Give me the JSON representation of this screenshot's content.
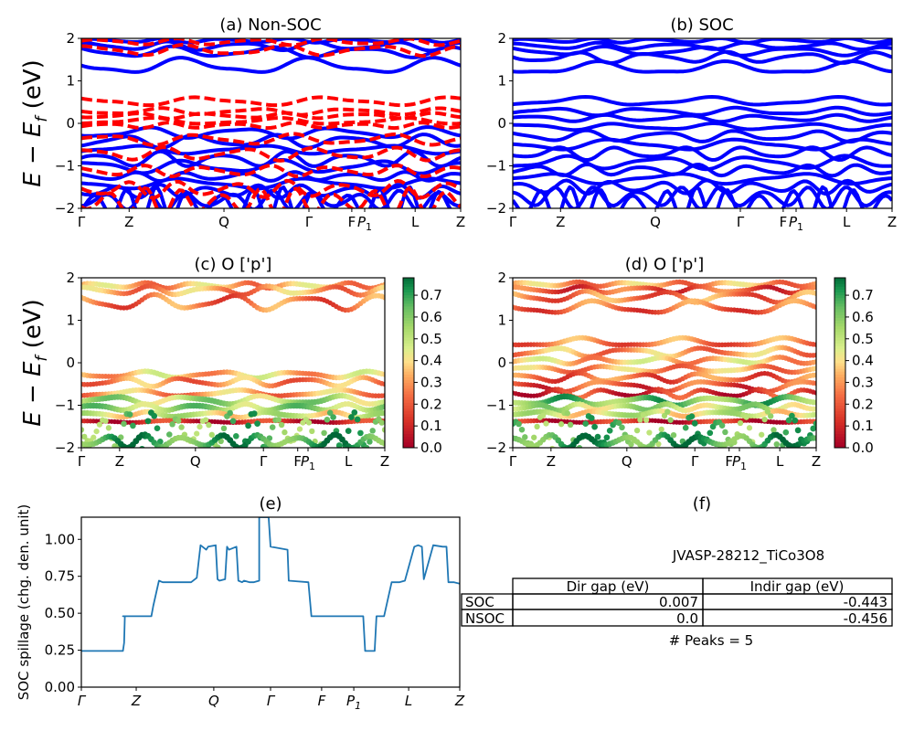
{
  "figure": {
    "panels": {
      "a": {
        "title": "(a) Non-SOC",
        "ylabel_main": "E − E",
        "ylabel_sub": "f",
        "ylabel_end": " (eV)"
      },
      "b": {
        "title": "(b) SOC"
      },
      "c": {
        "title": "(c)  O ['p']",
        "ylabel_main": "E − E",
        "ylabel_sub": "f",
        "ylabel_end": " (eV)"
      },
      "d": {
        "title": "(d) O ['p']"
      },
      "e": {
        "title": "(e)",
        "ylabel": "SOC spillage (chg. den. unit)"
      },
      "f": {
        "title": "(f)"
      }
    },
    "kpath_labels": [
      "Γ",
      "Z",
      "Q",
      "Γ",
      "F",
      "P",
      "L",
      "Z"
    ],
    "kpath_p_sub": "1",
    "band_yticks": [
      "−2",
      "−1",
      "0",
      "1",
      "2"
    ],
    "colorbar_ticks": [
      "0.0",
      "0.1",
      "0.2",
      "0.3",
      "0.4",
      "0.5",
      "0.6",
      "0.7"
    ],
    "spillage_yticks": [
      "0.00",
      "0.25",
      "0.50",
      "0.75",
      "1.00"
    ],
    "table": {
      "material": "JVASP-28212_TiCo3O8",
      "col_labels": [
        "Dir gap (eV)",
        "Indir gap (eV)"
      ],
      "rows": [
        {
          "label": "SOC",
          "dir": "0.007",
          "indir": "-0.443"
        },
        {
          "label": "NSOC",
          "dir": "0.0",
          "indir": "-0.456"
        }
      ],
      "peaks": "# Peaks = 5"
    },
    "colors": {
      "soc": "#0000ff",
      "nsoc": "#ff0000",
      "spillage": "#1f77b4"
    }
  },
  "chart_data": [
    {
      "type": "line",
      "title": "(a) Non-SOC",
      "ylabel": "E − E_f (eV)",
      "ylim": [
        -2,
        2
      ],
      "x_ticks": [
        0,
        0.126,
        0.376,
        0.6,
        0.713,
        0.747,
        0.88,
        1
      ],
      "x_tick_labels": [
        "Γ",
        "Z",
        "Q",
        "Γ",
        "F",
        "P1",
        "L",
        "Z"
      ],
      "series": [
        {
          "style": "solid",
          "color": "#0000ff",
          "bands": [
            {
              "y0": 1.95,
              "amp": 0.04,
              "freq": 6
            },
            {
              "y0": 1.82,
              "amp": 0.08,
              "freq": 5
            },
            {
              "y0": 1.68,
              "amp": 0.1,
              "freq": 4
            },
            {
              "y0": 1.35,
              "amp": 0.15,
              "freq": 3
            },
            {
              "y0": -0.22,
              "amp": 0.1,
              "freq": 4
            },
            {
              "y0": -0.42,
              "amp": 0.12,
              "freq": 5
            },
            {
              "y0": -0.62,
              "amp": 0.08,
              "freq": 3
            },
            {
              "y0": -0.85,
              "amp": 0.14,
              "freq": 6
            },
            {
              "y0": -1.02,
              "amp": 0.12,
              "freq": 4
            },
            {
              "y0": -1.25,
              "amp": 0.08,
              "freq": 7
            },
            {
              "y0": -1.42,
              "amp": 0.1,
              "freq": 3
            },
            {
              "y0": -1.6,
              "amp": 0.12,
              "freq": 8
            },
            {
              "y0": -1.82,
              "amp": 0.18,
              "freq": 9
            },
            {
              "y0": -1.9,
              "amp": 0.3,
              "freq": 12
            }
          ]
        },
        {
          "style": "dashed",
          "color": "#ff0000",
          "bands": [
            {
              "y0": 1.92,
              "amp": 0.06,
              "freq": 5
            },
            {
              "y0": 1.72,
              "amp": 0.1,
              "freq": 4
            },
            {
              "y0": 0.52,
              "amp": 0.08,
              "freq": 3
            },
            {
              "y0": 0.28,
              "amp": 0.06,
              "freq": 4
            },
            {
              "y0": 0.18,
              "amp": 0.05,
              "freq": 5
            },
            {
              "y0": 0.05,
              "amp": 0.06,
              "freq": 3
            },
            {
              "y0": -0.05,
              "amp": 0.05,
              "freq": 6
            },
            {
              "y0": -0.38,
              "amp": 0.1,
              "freq": 4
            },
            {
              "y0": -0.72,
              "amp": 0.12,
              "freq": 5
            },
            {
              "y0": -1.12,
              "amp": 0.1,
              "freq": 6
            },
            {
              "y0": -1.55,
              "amp": 0.15,
              "freq": 7
            },
            {
              "y0": -1.85,
              "amp": 0.25,
              "freq": 10
            }
          ]
        }
      ]
    },
    {
      "type": "line",
      "title": "(b) SOC",
      "ylim": [
        -2,
        2
      ],
      "x_ticks": [
        0,
        0.126,
        0.376,
        0.6,
        0.713,
        0.747,
        0.88,
        1
      ],
      "x_tick_labels": [
        "Γ",
        "Z",
        "Q",
        "Γ",
        "F",
        "P1",
        "L",
        "Z"
      ],
      "series": [
        {
          "style": "solid",
          "color": "#0000ff",
          "bands": [
            {
              "y0": 1.95,
              "amp": 0.04,
              "freq": 6
            },
            {
              "y0": 1.82,
              "amp": 0.06,
              "freq": 5
            },
            {
              "y0": 1.7,
              "amp": 0.08,
              "freq": 4
            },
            {
              "y0": 1.55,
              "amp": 0.1,
              "freq": 5
            },
            {
              "y0": 1.3,
              "amp": 0.12,
              "freq": 3
            },
            {
              "y0": 0.52,
              "amp": 0.08,
              "freq": 3
            },
            {
              "y0": 0.28,
              "amp": 0.07,
              "freq": 4
            },
            {
              "y0": 0.12,
              "amp": 0.06,
              "freq": 5
            },
            {
              "y0": -0.08,
              "amp": 0.06,
              "freq": 4
            },
            {
              "y0": -0.3,
              "amp": 0.1,
              "freq": 5
            },
            {
              "y0": -0.5,
              "amp": 0.1,
              "freq": 3
            },
            {
              "y0": -0.7,
              "amp": 0.12,
              "freq": 6
            },
            {
              "y0": -0.92,
              "amp": 0.12,
              "freq": 4
            },
            {
              "y0": -1.1,
              "amp": 0.1,
              "freq": 7
            },
            {
              "y0": -1.3,
              "amp": 0.1,
              "freq": 3
            },
            {
              "y0": -1.5,
              "amp": 0.12,
              "freq": 8
            },
            {
              "y0": -1.75,
              "amp": 0.2,
              "freq": 9
            },
            {
              "y0": -1.9,
              "amp": 0.3,
              "freq": 12
            }
          ]
        }
      ]
    },
    {
      "type": "scatter",
      "title": "(c)  O ['p']",
      "ylabel": "E − E_f (eV)",
      "ylim": [
        -2,
        2
      ],
      "colorbar": {
        "cmap": "RdYlGn",
        "range": [
          0.0,
          0.78
        ]
      },
      "x_ticks": [
        0,
        0.126,
        0.376,
        0.6,
        0.713,
        0.747,
        0.88,
        1
      ],
      "x_tick_labels": [
        "Γ",
        "Z",
        "Q",
        "Γ",
        "F",
        "P1",
        "L",
        "Z"
      ],
      "bands": [
        {
          "y0": 1.82,
          "amp": 0.05,
          "freq": 6,
          "weight": 0.32
        },
        {
          "y0": 1.7,
          "amp": 0.08,
          "freq": 5,
          "weight": 0.3
        },
        {
          "y0": 1.42,
          "amp": 0.14,
          "freq": 4,
          "weight": 0.24
        },
        {
          "y0": -0.28,
          "amp": 0.06,
          "freq": 4,
          "weight": 0.36
        },
        {
          "y0": -0.45,
          "amp": 0.08,
          "freq": 5,
          "weight": 0.28
        },
        {
          "y0": -0.72,
          "amp": 0.06,
          "freq": 3,
          "weight": 0.3
        },
        {
          "y0": -0.88,
          "amp": 0.08,
          "freq": 4,
          "weight": 0.52
        },
        {
          "y0": -1.05,
          "amp": 0.06,
          "freq": 6,
          "weight": 0.55
        },
        {
          "y0": -1.22,
          "amp": 0.05,
          "freq": 5,
          "weight": 0.45
        },
        {
          "y0": -1.38,
          "amp": 0.02,
          "freq": 3,
          "weight": 0.08
        },
        {
          "y0": -1.62,
          "amp": 0.35,
          "freq": 12,
          "weight": 0.62
        },
        {
          "y0": -1.85,
          "amp": 0.12,
          "freq": 8,
          "weight": 0.68
        }
      ]
    },
    {
      "type": "scatter",
      "title": "(d) O ['p']",
      "ylim": [
        -2,
        2
      ],
      "colorbar": {
        "cmap": "RdYlGn",
        "range": [
          0.0,
          0.78
        ]
      },
      "x_ticks": [
        0,
        0.126,
        0.376,
        0.6,
        0.713,
        0.747,
        0.88,
        1
      ],
      "x_tick_labels": [
        "Γ",
        "Z",
        "Q",
        "Γ",
        "F",
        "P1",
        "L",
        "Z"
      ],
      "bands": [
        {
          "y0": 1.85,
          "amp": 0.04,
          "freq": 6,
          "weight": 0.3
        },
        {
          "y0": 1.72,
          "amp": 0.06,
          "freq": 5,
          "weight": 0.18
        },
        {
          "y0": 1.55,
          "amp": 0.1,
          "freq": 4,
          "weight": 0.25
        },
        {
          "y0": 1.3,
          "amp": 0.12,
          "freq": 3,
          "weight": 0.22
        },
        {
          "y0": 0.48,
          "amp": 0.08,
          "freq": 3,
          "weight": 0.25
        },
        {
          "y0": 0.25,
          "amp": 0.08,
          "freq": 4,
          "weight": 0.3
        },
        {
          "y0": 0.05,
          "amp": 0.06,
          "freq": 5,
          "weight": 0.35
        },
        {
          "y0": -0.15,
          "amp": 0.06,
          "freq": 4,
          "weight": 0.3
        },
        {
          "y0": -0.35,
          "amp": 0.08,
          "freq": 5,
          "weight": 0.22
        },
        {
          "y0": -0.55,
          "amp": 0.1,
          "freq": 3,
          "weight": 0.18
        },
        {
          "y0": -0.72,
          "amp": 0.08,
          "freq": 6,
          "weight": 0.12
        },
        {
          "y0": -0.9,
          "amp": 0.08,
          "freq": 4,
          "weight": 0.62
        },
        {
          "y0": -1.05,
          "amp": 0.06,
          "freq": 7,
          "weight": 0.5
        },
        {
          "y0": -1.2,
          "amp": 0.05,
          "freq": 5,
          "weight": 0.45
        },
        {
          "y0": -1.38,
          "amp": 0.02,
          "freq": 3,
          "weight": 0.08
        },
        {
          "y0": -1.62,
          "amp": 0.35,
          "freq": 12,
          "weight": 0.62
        },
        {
          "y0": -1.85,
          "amp": 0.12,
          "freq": 8,
          "weight": 0.68
        }
      ]
    },
    {
      "type": "line",
      "title": "(e)",
      "ylabel": "SOC spillage (chg. den. unit)",
      "ylim": [
        0,
        1.15
      ],
      "x_ticks": [
        0,
        0.145,
        0.35,
        0.5,
        0.635,
        0.72,
        0.865,
        1
      ],
      "x_tick_labels": [
        "Γ",
        "Z",
        "Q",
        "Γ",
        "F",
        "P1",
        "L",
        "Z"
      ],
      "x": [
        0,
        0.03,
        0.033,
        0.11,
        0.113,
        0.115,
        0.11,
        0.18,
        0.185,
        0.19,
        0.205,
        0.215,
        0.22,
        0.235,
        0.24,
        0.25,
        0.258,
        0.265,
        0.272,
        0.28,
        0.29,
        0.305,
        0.315,
        0.32,
        0.33,
        0.335,
        0.355,
        0.36,
        0.365,
        0.38,
        0.385,
        0.39,
        0.41,
        0.415,
        0.425,
        0.43,
        0.445,
        0.455,
        0.47,
        0.47,
        0.475,
        0.48,
        0.48,
        0.485,
        0.495,
        0.5,
        0.545,
        0.548,
        0.6,
        0.608,
        0.61,
        0.74,
        0.745,
        0.75,
        0.765,
        0.775,
        0.78,
        0.8,
        0.82,
        0.825,
        0.835,
        0.84,
        0.855,
        0.88,
        0.89,
        0.9,
        0.905,
        0.93,
        0.955,
        0.965,
        0.97,
        0.985,
        1
      ],
      "y": [
        0.245,
        0.245,
        0.245,
        0.245,
        0.3,
        0.48,
        0.48,
        0.48,
        0.48,
        0.55,
        0.72,
        0.71,
        0.71,
        0.71,
        0.71,
        0.71,
        0.71,
        0.71,
        0.71,
        0.71,
        0.71,
        0.74,
        0.96,
        0.95,
        0.93,
        0.95,
        0.96,
        0.73,
        0.72,
        0.73,
        0.95,
        0.93,
        0.95,
        0.72,
        0.71,
        0.72,
        0.71,
        0.71,
        0.72,
        1.15,
        1.15,
        1.15,
        1.15,
        1.15,
        1.15,
        0.95,
        0.93,
        0.72,
        0.71,
        0.48,
        0.48,
        0.48,
        0.48,
        0.245,
        0.245,
        0.245,
        0.48,
        0.48,
        0.71,
        0.71,
        0.71,
        0.71,
        0.72,
        0.95,
        0.96,
        0.95,
        0.73,
        0.96,
        0.95,
        0.95,
        0.71,
        0.71,
        0.7
      ]
    }
  ]
}
